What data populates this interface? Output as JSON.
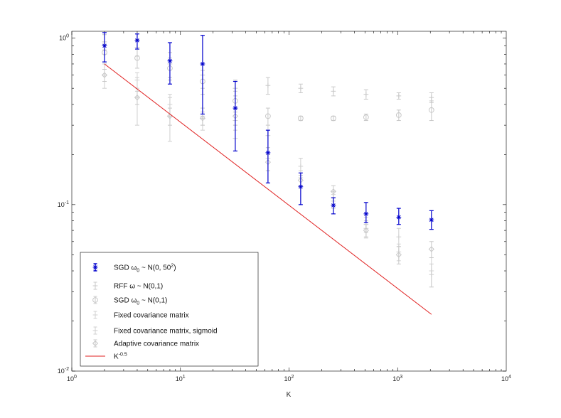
{
  "chart_data": {
    "type": "scatter",
    "title": "",
    "xlabel": "K",
    "ylabel": "",
    "xscale": "log",
    "yscale": "log",
    "xlim": [
      1,
      10000
    ],
    "ylim": [
      0.01,
      1.1
    ],
    "grid": false,
    "legend_position": "bottom-left",
    "x_ticks": [
      {
        "base": "10",
        "exp": "0"
      },
      {
        "base": "10",
        "exp": "1"
      },
      {
        "base": "10",
        "exp": "2"
      },
      {
        "base": "10",
        "exp": "3"
      },
      {
        "base": "10",
        "exp": "4"
      }
    ],
    "y_ticks": [
      {
        "base": "10",
        "exp": "-2"
      },
      {
        "base": "10",
        "exp": "-1"
      },
      {
        "base": "10",
        "exp": "0"
      }
    ],
    "x": [
      2,
      4,
      8,
      16,
      32,
      64,
      128,
      256,
      512,
      1024,
      2048
    ],
    "series": [
      {
        "marker": "asterisk",
        "color": "#0000cc",
        "style": "errorbar",
        "legend": {
          "prefix": "SGD ω",
          "sub": "0",
          "middle": " ~ N(0, 50",
          "sup": "2",
          "suffix": ")"
        },
        "x": [
          2,
          4,
          8,
          16,
          32,
          64,
          128,
          256,
          512,
          1024,
          2048
        ],
        "y": [
          0.9,
          0.97,
          0.73,
          0.7,
          0.38,
          0.205,
          0.128,
          0.099,
          0.088,
          0.084,
          0.081
        ],
        "lo": [
          0.72,
          0.86,
          0.53,
          0.35,
          0.21,
          0.135,
          0.1,
          0.088,
          0.078,
          0.076,
          0.071
        ],
        "hi": [
          1.08,
          1.06,
          0.94,
          1.04,
          0.55,
          0.28,
          0.155,
          0.11,
          0.103,
          0.095,
          0.092
        ]
      },
      {
        "marker": "cross",
        "color": "#c8c8c8",
        "style": "errorbar",
        "legend": {
          "prefix": "RFF ω ~ N(0,1)",
          "sub": "",
          "middle": "",
          "sup": "",
          "suffix": ""
        },
        "x": [
          2,
          4,
          8,
          16,
          32,
          64,
          128,
          256,
          512,
          1024,
          2048
        ],
        "y": [
          0.95,
          0.88,
          0.7,
          0.6,
          0.5,
          0.52,
          0.5,
          0.48,
          0.46,
          0.45,
          0.44
        ],
        "lo": [
          0.85,
          0.78,
          0.58,
          0.5,
          0.45,
          0.46,
          0.47,
          0.45,
          0.43,
          0.43,
          0.41
        ],
        "hi": [
          1.05,
          0.98,
          0.82,
          0.7,
          0.56,
          0.58,
          0.53,
          0.51,
          0.49,
          0.47,
          0.47
        ]
      },
      {
        "marker": "circle",
        "color": "#c8c8c8",
        "style": "errorbar",
        "legend": {
          "prefix": "SGD ω",
          "sub": "0",
          "middle": " ~ N(0,1)",
          "sup": "",
          "suffix": ""
        },
        "x": [
          2,
          4,
          8,
          16,
          32,
          64,
          128,
          256,
          512,
          1024,
          2048
        ],
        "y": [
          0.82,
          0.76,
          0.66,
          0.55,
          0.42,
          0.34,
          0.33,
          0.33,
          0.335,
          0.345,
          0.37
        ],
        "lo": [
          0.72,
          0.66,
          0.56,
          0.46,
          0.36,
          0.3,
          0.32,
          0.32,
          0.32,
          0.32,
          0.32
        ],
        "hi": [
          0.92,
          0.86,
          0.76,
          0.64,
          0.48,
          0.38,
          0.34,
          0.34,
          0.35,
          0.37,
          0.42
        ]
      },
      {
        "marker": "cross",
        "color": "#d2d2d2",
        "style": "errorbar",
        "legend": {
          "prefix": "Fixed covariance matrix",
          "sub": "",
          "middle": "",
          "sup": "",
          "suffix": ""
        },
        "x": [
          2,
          4,
          8,
          16,
          32,
          64,
          128,
          256,
          512,
          1024,
          2048
        ],
        "y": [
          0.8,
          0.56,
          0.4,
          0.34,
          0.25,
          0.19,
          0.145,
          0.105,
          0.076,
          0.052,
          0.04
        ],
        "lo": [
          0.7,
          0.5,
          0.34,
          0.3,
          0.21,
          0.16,
          0.13,
          0.095,
          0.068,
          0.046,
          0.032
        ],
        "hi": [
          0.9,
          0.62,
          0.46,
          0.38,
          0.3,
          0.22,
          0.16,
          0.115,
          0.084,
          0.058,
          0.048
        ]
      },
      {
        "marker": "cross",
        "color": "#cfcfcf",
        "style": "errorbar",
        "legend": {
          "prefix": "Fixed covariance matrix, sigmoid",
          "sub": "",
          "middle": "",
          "sup": "",
          "suffix": ""
        },
        "x": [
          2,
          4,
          8,
          16,
          32,
          64,
          128,
          256,
          512,
          1024,
          2048
        ],
        "y": [
          0.6,
          0.44,
          0.34,
          0.33,
          0.32,
          0.26,
          0.17,
          0.11,
          0.072,
          0.064,
          0.038
        ],
        "lo": [
          0.5,
          0.3,
          0.24,
          0.28,
          0.28,
          0.22,
          0.15,
          0.1,
          0.063,
          0.056,
          0.032
        ],
        "hi": [
          0.7,
          0.58,
          0.44,
          0.38,
          0.36,
          0.3,
          0.19,
          0.12,
          0.08,
          0.072,
          0.044
        ]
      },
      {
        "marker": "diamond",
        "color": "#c8c8c8",
        "style": "errorbar",
        "legend": {
          "prefix": "Adaptive covariance matrix",
          "sub": "",
          "middle": "",
          "sup": "",
          "suffix": ""
        },
        "x": [
          2,
          4,
          8,
          16,
          32,
          64,
          128,
          256,
          512,
          1024,
          2048
        ],
        "y": [
          0.6,
          0.44,
          0.34,
          0.33,
          0.34,
          0.18,
          0.14,
          0.12,
          0.07,
          0.05,
          0.054
        ],
        "lo": [
          0.55,
          0.4,
          0.3,
          0.3,
          0.3,
          0.16,
          0.13,
          0.11,
          0.064,
          0.044,
          0.048
        ],
        "hi": [
          0.65,
          0.48,
          0.38,
          0.36,
          0.38,
          0.2,
          0.15,
          0.13,
          0.076,
          0.056,
          0.06
        ]
      },
      {
        "marker": "none",
        "color": "#e02020",
        "style": "line",
        "legend": {
          "prefix": "K",
          "sub": "",
          "middle": "",
          "sup": "-0.5",
          "suffix": ""
        },
        "x": [
          2,
          2048
        ],
        "y": [
          0.7,
          0.0219
        ]
      }
    ]
  }
}
